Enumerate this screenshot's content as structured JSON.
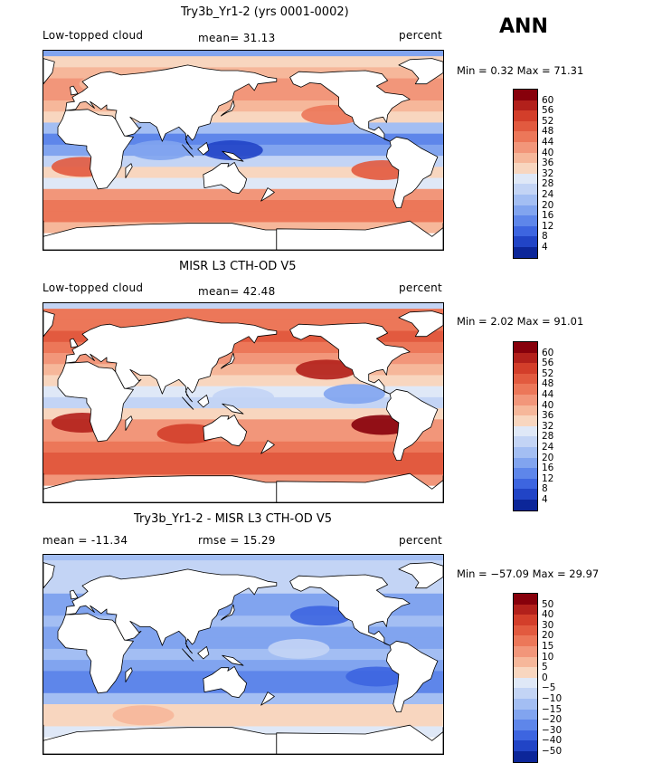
{
  "season": "ANN",
  "colors": {
    "pos": [
      "#f8d6bf",
      "#f6b79a",
      "#f2967a",
      "#ec7759",
      "#e25a3f",
      "#d33e2a",
      "#b2201b",
      "#87000b"
    ],
    "neg": [
      "#dfe8f7",
      "#c3d4f5",
      "#a3bef3",
      "#81a4ef",
      "#5e86ea",
      "#3d65e0",
      "#2144c6",
      "#0c2699",
      "#030f6e"
    ],
    "land": "#ffffff",
    "coast": "#000000"
  },
  "chart_data": [
    {
      "type": "heatmap",
      "title": "Try3b_Yr1-2 (yrs 0001-0002)",
      "left_label": "Low-topped cloud",
      "stat_label": "mean=  31.13",
      "mean": 31.13,
      "units": "percent",
      "min_max": "Min =    0.32 Max =  71.31",
      "min": 0.32,
      "max": 71.31,
      "levels": [
        "60",
        "56",
        "52",
        "48",
        "44",
        "40",
        "36",
        "32",
        "28",
        "24",
        "20",
        "16",
        "12",
        "8",
        "4"
      ],
      "level_values": [
        60,
        56,
        52,
        48,
        44,
        40,
        36,
        32,
        28,
        24,
        20,
        16,
        12,
        8,
        4
      ],
      "bands": [
        {
          "lat": 80,
          "c": "e1"
        },
        {
          "lat": 70,
          "c": "e2"
        },
        {
          "lat": 60,
          "c": "e3"
        },
        {
          "lat": 50,
          "c": "e3"
        },
        {
          "lat": 40,
          "c": "e2"
        },
        {
          "lat": 30,
          "c": "e1"
        },
        {
          "lat": 20,
          "c": "b3"
        },
        {
          "lat": 10,
          "c": "b5"
        },
        {
          "lat": 0,
          "c": "b4"
        },
        {
          "lat": -10,
          "c": "b2"
        },
        {
          "lat": -20,
          "c": "e1"
        },
        {
          "lat": -30,
          "c": "b1"
        },
        {
          "lat": -40,
          "c": "e3"
        },
        {
          "lat": -50,
          "c": "e4"
        },
        {
          "lat": -60,
          "c": "e4"
        },
        {
          "lat": -70,
          "c": "e2"
        },
        {
          "lat": -80,
          "c": "w"
        }
      ],
      "blobs": [
        {
          "lon": -130,
          "lat": 32,
          "c": "e4"
        },
        {
          "lon": -85,
          "lat": -18,
          "c": "e5"
        },
        {
          "lon": 5,
          "lat": -15,
          "c": "e5"
        },
        {
          "lon": 140,
          "lat": 0,
          "c": "b7"
        },
        {
          "lon": 75,
          "lat": 0,
          "c": "b4"
        },
        {
          "lon": 30,
          "lat": 60,
          "c": "e2"
        }
      ]
    },
    {
      "type": "heatmap",
      "title": "MISR L3 CTH-OD V5",
      "left_label": "Low-topped cloud",
      "stat_label": "mean=  42.48",
      "mean": 42.48,
      "units": "percent",
      "min_max": "Min =    2.02 Max =  91.01",
      "min": 2.02,
      "max": 91.01,
      "levels": [
        "60",
        "56",
        "52",
        "48",
        "44",
        "40",
        "36",
        "32",
        "28",
        "24",
        "20",
        "16",
        "12",
        "8",
        "4"
      ],
      "level_values": [
        60,
        56,
        52,
        48,
        44,
        40,
        36,
        32,
        28,
        24,
        20,
        16,
        12,
        8,
        4
      ],
      "bands": [
        {
          "lat": 80,
          "c": "e4"
        },
        {
          "lat": 70,
          "c": "e4"
        },
        {
          "lat": 60,
          "c": "e5"
        },
        {
          "lat": 50,
          "c": "e4"
        },
        {
          "lat": 40,
          "c": "e3"
        },
        {
          "lat": 30,
          "c": "e2"
        },
        {
          "lat": 20,
          "c": "e1"
        },
        {
          "lat": 10,
          "c": "b1"
        },
        {
          "lat": 0,
          "c": "b2"
        },
        {
          "lat": -10,
          "c": "e1"
        },
        {
          "lat": -20,
          "c": "e3"
        },
        {
          "lat": -30,
          "c": "e3"
        },
        {
          "lat": -40,
          "c": "e4"
        },
        {
          "lat": -50,
          "c": "e5"
        },
        {
          "lat": -60,
          "c": "e5"
        },
        {
          "lat": -70,
          "c": "e3"
        },
        {
          "lat": -80,
          "c": "w"
        }
      ],
      "blobs": [
        {
          "lon": -135,
          "lat": 30,
          "c": "e7"
        },
        {
          "lon": -85,
          "lat": -20,
          "c": "e8"
        },
        {
          "lon": 5,
          "lat": -18,
          "c": "e7"
        },
        {
          "lon": 100,
          "lat": -28,
          "c": "e6"
        },
        {
          "lon": -110,
          "lat": 8,
          "c": "b4"
        },
        {
          "lon": 150,
          "lat": 5,
          "c": "b2"
        }
      ]
    },
    {
      "type": "heatmap",
      "title": "Try3b_Yr1-2 - MISR L3 CTH-OD V5",
      "left_label": "mean = -11.34",
      "stat_label": "rmse =  15.29",
      "mean": -11.34,
      "rmse": 15.29,
      "units": "percent",
      "min_max": "Min = −57.09 Max =  29.97",
      "min": -57.09,
      "max": 29.97,
      "levels": [
        "50",
        "40",
        "30",
        "20",
        "15",
        "10",
        "5",
        "0",
        "−5",
        "−10",
        "−15",
        "−20",
        "−30",
        "−40",
        "−50"
      ],
      "level_values": [
        50,
        40,
        30,
        20,
        15,
        10,
        5,
        0,
        -5,
        -10,
        -15,
        -20,
        -30,
        -40,
        -50
      ],
      "bands": [
        {
          "lat": 80,
          "c": "b2"
        },
        {
          "lat": 70,
          "c": "b2"
        },
        {
          "lat": 60,
          "c": "b2"
        },
        {
          "lat": 50,
          "c": "b4"
        },
        {
          "lat": 40,
          "c": "b4"
        },
        {
          "lat": 30,
          "c": "b3"
        },
        {
          "lat": 20,
          "c": "b4"
        },
        {
          "lat": 10,
          "c": "b4"
        },
        {
          "lat": 0,
          "c": "b3"
        },
        {
          "lat": -10,
          "c": "b4"
        },
        {
          "lat": -20,
          "c": "b5"
        },
        {
          "lat": -30,
          "c": "b5"
        },
        {
          "lat": -40,
          "c": "b3"
        },
        {
          "lat": -50,
          "c": "e1"
        },
        {
          "lat": -60,
          "c": "e1"
        },
        {
          "lat": -70,
          "c": "b1"
        },
        {
          "lat": -80,
          "c": "w"
        }
      ],
      "blobs": [
        {
          "lon": -140,
          "lat": 35,
          "c": "b6"
        },
        {
          "lon": -90,
          "lat": -20,
          "c": "b6"
        },
        {
          "lon": -160,
          "lat": 5,
          "c": "b2"
        },
        {
          "lon": 60,
          "lat": -55,
          "c": "e2"
        }
      ]
    }
  ]
}
